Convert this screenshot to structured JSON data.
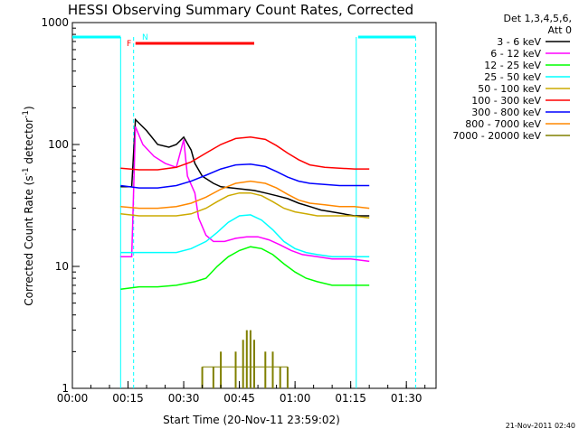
{
  "chart_data": {
    "type": "line",
    "title": "HESSI Observing Summary Count Rates, Corrected",
    "xlabel": "Start Time (20-Nov-11 23:59:02)",
    "ylabel": "Corrected Count Rate (s⁻¹ detector⁻¹)",
    "y_scale": "log",
    "ylim": [
      1,
      1000
    ],
    "xlim_minutes": [
      0,
      98
    ],
    "x_tick_labels": [
      "00:00",
      "00:15",
      "00:30",
      "00:45",
      "01:00",
      "01:15",
      "01:30"
    ],
    "x_tick_minutes": [
      0,
      15,
      30,
      45,
      60,
      75,
      90
    ],
    "y_tick_labels": [
      "1",
      "10",
      "100",
      "1000"
    ],
    "y_tick_values": [
      1,
      10,
      100,
      1000
    ],
    "legend_header": [
      "Det 1,3,4,5,6,",
      "Att 0"
    ],
    "legend_position": "right",
    "footer": "21-Nov-2011 02:40",
    "flags": [
      {
        "label": "F",
        "color": "#ff0000",
        "start_min": 17,
        "end_min": 49
      },
      {
        "label": "N",
        "color": "#00ffff",
        "start_min": 17,
        "end_min": 17
      }
    ],
    "day_night": {
      "color": "#00ffff",
      "day_intervals": [
        [
          0,
          13
        ],
        [
          77,
          92.5
        ]
      ],
      "night_boundaries_dashed": [
        16.5,
        92.5
      ],
      "night_boundaries_solid": [
        13,
        76.5
      ]
    },
    "series": [
      {
        "name": "3 - 6 keV",
        "color": "#000000",
        "values": [
          [
            13,
            45
          ],
          [
            16,
            45
          ],
          [
            17,
            160
          ],
          [
            20,
            130
          ],
          [
            23,
            100
          ],
          [
            26,
            95
          ],
          [
            28,
            100
          ],
          [
            30,
            115
          ],
          [
            32,
            90
          ],
          [
            33,
            70
          ],
          [
            35,
            55
          ],
          [
            38,
            48
          ],
          [
            40,
            45
          ],
          [
            43,
            44
          ],
          [
            46,
            43
          ],
          [
            49,
            42
          ],
          [
            52,
            40
          ],
          [
            55,
            38
          ],
          [
            58,
            36
          ],
          [
            61,
            33
          ],
          [
            64,
            31
          ],
          [
            67,
            29
          ],
          [
            70,
            28
          ],
          [
            73,
            27
          ],
          [
            76,
            26
          ],
          [
            80,
            26
          ]
        ]
      },
      {
        "name": "6 - 12 keV",
        "color": "#ff00ff",
        "values": [
          [
            13,
            12
          ],
          [
            16,
            12
          ],
          [
            17,
            140
          ],
          [
            19,
            100
          ],
          [
            22,
            80
          ],
          [
            25,
            70
          ],
          [
            28,
            65
          ],
          [
            30,
            110
          ],
          [
            31,
            55
          ],
          [
            33,
            40
          ],
          [
            34,
            25
          ],
          [
            36,
            18
          ],
          [
            38,
            16
          ],
          [
            41,
            16
          ],
          [
            44,
            17
          ],
          [
            47,
            17.5
          ],
          [
            50,
            17.5
          ],
          [
            53,
            16.5
          ],
          [
            56,
            15
          ],
          [
            59,
            13.5
          ],
          [
            62,
            12.5
          ],
          [
            66,
            12
          ],
          [
            70,
            11.5
          ],
          [
            75,
            11.5
          ],
          [
            80,
            11
          ]
        ]
      },
      {
        "name": "12 - 25 keV",
        "color": "#00ff00",
        "values": [
          [
            13,
            6.5
          ],
          [
            18,
            6.8
          ],
          [
            23,
            6.8
          ],
          [
            28,
            7
          ],
          [
            33,
            7.5
          ],
          [
            36,
            8
          ],
          [
            39,
            10
          ],
          [
            42,
            12
          ],
          [
            45,
            13.5
          ],
          [
            48,
            14.5
          ],
          [
            51,
            14
          ],
          [
            54,
            12.5
          ],
          [
            57,
            10.5
          ],
          [
            60,
            9
          ],
          [
            63,
            8
          ],
          [
            66,
            7.5
          ],
          [
            70,
            7
          ],
          [
            75,
            7
          ],
          [
            80,
            7
          ]
        ]
      },
      {
        "name": "25 - 50 keV",
        "color": "#00ffff",
        "values": [
          [
            13,
            13
          ],
          [
            18,
            13
          ],
          [
            23,
            13
          ],
          [
            28,
            13
          ],
          [
            32,
            14
          ],
          [
            36,
            16
          ],
          [
            39,
            19
          ],
          [
            42,
            23
          ],
          [
            45,
            26
          ],
          [
            48,
            26.5
          ],
          [
            51,
            24
          ],
          [
            54,
            20
          ],
          [
            57,
            16
          ],
          [
            60,
            14
          ],
          [
            63,
            13
          ],
          [
            66,
            12.5
          ],
          [
            70,
            12
          ],
          [
            75,
            12
          ],
          [
            80,
            12
          ]
        ]
      },
      {
        "name": "50 - 100 keV",
        "color": "#ccaa00",
        "values": [
          [
            13,
            27
          ],
          [
            18,
            26
          ],
          [
            23,
            26
          ],
          [
            28,
            26
          ],
          [
            32,
            27
          ],
          [
            36,
            30
          ],
          [
            39,
            34
          ],
          [
            42,
            38
          ],
          [
            45,
            40
          ],
          [
            48,
            40
          ],
          [
            51,
            38
          ],
          [
            54,
            34
          ],
          [
            57,
            30
          ],
          [
            60,
            28
          ],
          [
            63,
            27
          ],
          [
            66,
            26
          ],
          [
            70,
            26
          ],
          [
            75,
            26
          ],
          [
            80,
            25
          ]
        ]
      },
      {
        "name": "100 - 300 keV",
        "color": "#ff0000",
        "values": [
          [
            13,
            64
          ],
          [
            18,
            62
          ],
          [
            23,
            62
          ],
          [
            28,
            65
          ],
          [
            32,
            72
          ],
          [
            36,
            85
          ],
          [
            40,
            100
          ],
          [
            44,
            112
          ],
          [
            48,
            115
          ],
          [
            52,
            110
          ],
          [
            55,
            98
          ],
          [
            58,
            85
          ],
          [
            61,
            75
          ],
          [
            64,
            68
          ],
          [
            68,
            65
          ],
          [
            72,
            64
          ],
          [
            76,
            63
          ],
          [
            80,
            63
          ]
        ]
      },
      {
        "name": "300 - 800 keV",
        "color": "#0000ff",
        "values": [
          [
            13,
            46
          ],
          [
            18,
            44
          ],
          [
            23,
            44
          ],
          [
            28,
            46
          ],
          [
            32,
            50
          ],
          [
            36,
            56
          ],
          [
            40,
            63
          ],
          [
            44,
            68
          ],
          [
            48,
            69
          ],
          [
            52,
            66
          ],
          [
            55,
            60
          ],
          [
            58,
            54
          ],
          [
            61,
            50
          ],
          [
            64,
            48
          ],
          [
            68,
            47
          ],
          [
            72,
            46
          ],
          [
            76,
            46
          ],
          [
            80,
            46
          ]
        ]
      },
      {
        "name": "800 - 7000 keV",
        "color": "#ff8800",
        "values": [
          [
            13,
            31
          ],
          [
            18,
            30
          ],
          [
            23,
            30
          ],
          [
            28,
            31
          ],
          [
            32,
            33
          ],
          [
            36,
            37
          ],
          [
            40,
            43
          ],
          [
            44,
            48
          ],
          [
            48,
            50
          ],
          [
            52,
            48
          ],
          [
            55,
            44
          ],
          [
            58,
            39
          ],
          [
            61,
            35
          ],
          [
            64,
            33
          ],
          [
            68,
            32
          ],
          [
            72,
            31
          ],
          [
            76,
            31
          ],
          [
            80,
            30
          ]
        ]
      },
      {
        "name": "7000 - 20000 keV",
        "color": "#808000",
        "values": [
          [
            35,
            1.5
          ],
          [
            38,
            1.5
          ],
          [
            40,
            2
          ],
          [
            44,
            2
          ],
          [
            46,
            2.5
          ],
          [
            47,
            3
          ],
          [
            48,
            3
          ],
          [
            49,
            2.5
          ],
          [
            52,
            2
          ],
          [
            54,
            2
          ],
          [
            56,
            1.5
          ],
          [
            58,
            1.5
          ]
        ]
      }
    ]
  }
}
